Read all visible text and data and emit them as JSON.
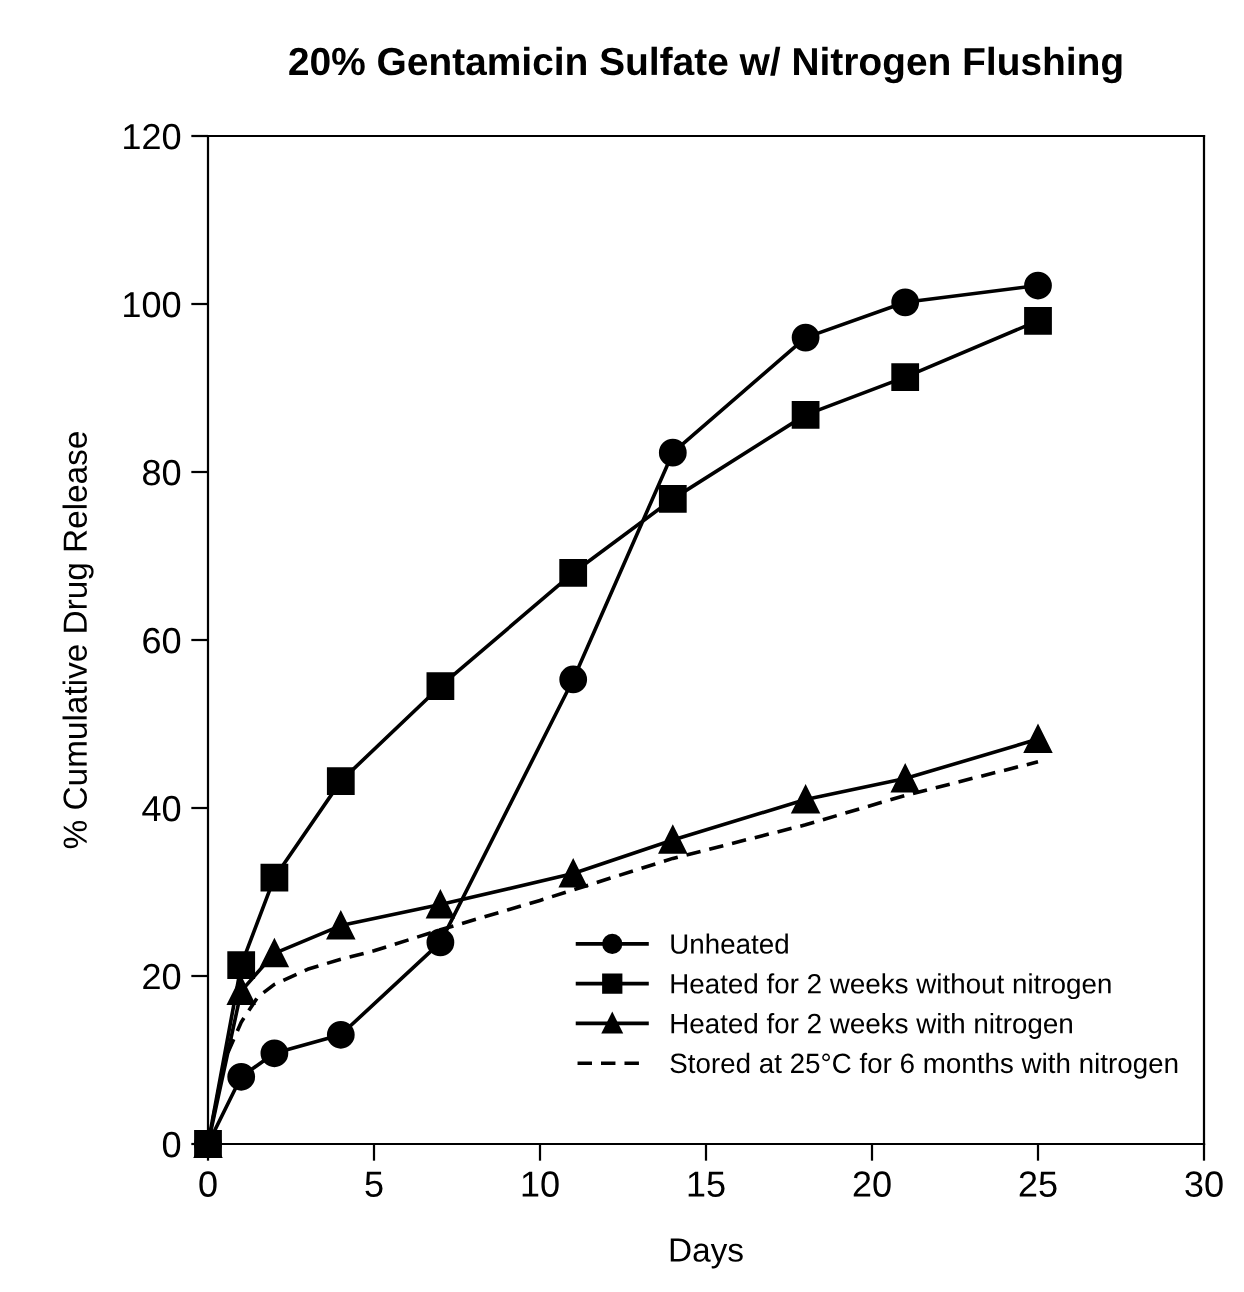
{
  "chart_data": {
    "type": "line",
    "title": "20% Gentamicin Sulfate w/ Nitrogen Flushing",
    "xlabel": "Days",
    "ylabel": "% Cumulative Drug Release",
    "x": [
      0,
      1,
      2,
      4,
      7,
      11,
      14,
      18,
      21,
      25
    ],
    "series": [
      {
        "name": "Unheated",
        "color": "#000000",
        "marker": "circle",
        "line_style": "solid",
        "values": [
          0,
          8,
          10.8,
          13,
          24,
          55.3,
          82.3,
          96,
          100.2,
          102.2
        ]
      },
      {
        "name": "Heated for 2 weeks without nitrogen",
        "color": "#000000",
        "marker": "square",
        "line_style": "solid",
        "values": [
          0,
          21.3,
          31.7,
          43.2,
          54.5,
          68,
          76.8,
          86.8,
          91.3,
          98
        ]
      },
      {
        "name": "Heated for 2 weeks with nitrogen",
        "color": "#000000",
        "marker": "triangle",
        "line_style": "solid",
        "values": [
          0,
          18.2,
          22.7,
          26,
          28.5,
          32.2,
          36.2,
          41,
          43.5,
          48.2
        ]
      },
      {
        "name": "Stored at 25°C for 6 months with nitrogen",
        "color": "#000000",
        "marker": "none",
        "line_style": "dashed",
        "x": [
          0,
          0.5,
          1,
          1.5,
          2,
          3,
          4,
          5,
          7,
          10,
          14,
          18,
          21,
          25
        ],
        "values": [
          0,
          10,
          14.5,
          17.5,
          19,
          20.8,
          22,
          23,
          25.5,
          29,
          34,
          38,
          41.5,
          45.5
        ]
      }
    ],
    "xlim": [
      0,
      30
    ],
    "xticks": [
      0,
      5,
      10,
      15,
      20,
      25,
      30
    ],
    "ylim": [
      0,
      120
    ],
    "yticks": [
      0,
      20,
      40,
      60,
      80,
      100,
      120
    ],
    "grid": false,
    "legend": "bottom right"
  }
}
